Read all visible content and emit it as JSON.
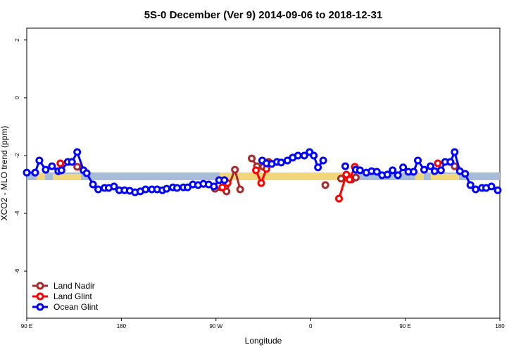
{
  "chart_data": {
    "type": "line",
    "title": "5S-0 December (Ver 9)   2014-09-06 to 2018-12-31",
    "x_label": "Longitude",
    "y_label": "XCO2 - MLO trend (ppm)",
    "xlim": [
      90,
      540
    ],
    "xticks": [
      {
        "value": 90,
        "label": "90 E"
      },
      {
        "value": 180,
        "label": "180"
      },
      {
        "value": 270,
        "label": "90 W"
      },
      {
        "value": 360,
        "label": "0"
      },
      {
        "value": 450,
        "label": "90 E"
      },
      {
        "value": 540,
        "label": "180"
      }
    ],
    "ylim": [
      -7.63,
      2.41
    ],
    "yticks": [
      2,
      0,
      -2,
      -4,
      -6
    ],
    "legend": "bottom-left",
    "series": [
      {
        "name": "Land Nadir",
        "color": "#a52a2a",
        "x": [
          138,
          null,
          269,
          280,
          288,
          293,
          null,
          304,
          309,
          315,
          320,
          null,
          374,
          null,
          389,
          399,
          403,
          null,
          497
        ],
        "values": [
          -2.39,
          null,
          -3.15,
          -3.24,
          -2.49,
          -3.17,
          null,
          -2.1,
          -2.37,
          -2.39,
          -2.22,
          null,
          -3.02,
          null,
          -2.8,
          -2.83,
          -2.76,
          null,
          -2.37
        ]
      },
      {
        "name": "Land Glint",
        "color": "#ff0000",
        "x": [
          122,
          null,
          276,
          281,
          null,
          308,
          313,
          318,
          322,
          null,
          387,
          394,
          397,
          402,
          null,
          481
        ],
        "values": [
          -2.27,
          null,
          -3.1,
          -2.95,
          null,
          -2.51,
          -2.95,
          -2.46,
          -2.27,
          null,
          -3.49,
          -2.66,
          -2.83,
          -2.39,
          null,
          -2.27
        ]
      },
      {
        "name": "Ocean Glint",
        "color": "#0000ff",
        "x": [
          90,
          98,
          102,
          108,
          114,
          120,
          123,
          129,
          133,
          138,
          144,
          147,
          153,
          158,
          164,
          168,
          173,
          178,
          183,
          188,
          193,
          198,
          203,
          209,
          214,
          219,
          223,
          229,
          233,
          239,
          243,
          248,
          253,
          258,
          263,
          268,
          273,
          278,
          null,
          314,
          318,
          323,
          328,
          332,
          338,
          343,
          348,
          354,
          359,
          363,
          367,
          372,
          null,
          393,
          null,
          403,
          407,
          413,
          418,
          423,
          428,
          433,
          438,
          443,
          448,
          453,
          458,
          462,
          468,
          474,
          478,
          484,
          488,
          493,
          497,
          502,
          507,
          512,
          517,
          523,
          527,
          532,
          538
        ],
        "values": [
          -2.59,
          -2.59,
          -2.17,
          -2.49,
          -2.37,
          -2.54,
          -2.51,
          -2.22,
          -2.22,
          -1.88,
          -2.51,
          -2.61,
          -3.0,
          -3.17,
          -3.12,
          -3.12,
          -3.07,
          -3.2,
          -3.2,
          -3.22,
          -3.27,
          -3.24,
          -3.17,
          -3.17,
          -3.17,
          -3.2,
          -3.15,
          -3.1,
          -3.12,
          -3.1,
          -3.1,
          -3.0,
          -3.02,
          -2.98,
          -3.0,
          -3.07,
          -2.85,
          -2.85,
          null,
          -2.17,
          -2.27,
          -2.29,
          -2.22,
          -2.24,
          -2.17,
          -2.07,
          -2.0,
          -2.0,
          -1.88,
          -2.0,
          -2.41,
          -2.17,
          null,
          -2.37,
          null,
          -2.49,
          -2.51,
          -2.59,
          -2.54,
          -2.56,
          -2.68,
          -2.66,
          -2.51,
          -2.68,
          -2.41,
          -2.56,
          -2.56,
          -2.17,
          -2.49,
          -2.37,
          -2.54,
          -2.51,
          -2.22,
          -2.22,
          -1.88,
          -2.54,
          -2.63,
          -3.02,
          -3.17,
          -3.12,
          -3.12,
          -3.07,
          -3.2
        ]
      }
    ]
  }
}
